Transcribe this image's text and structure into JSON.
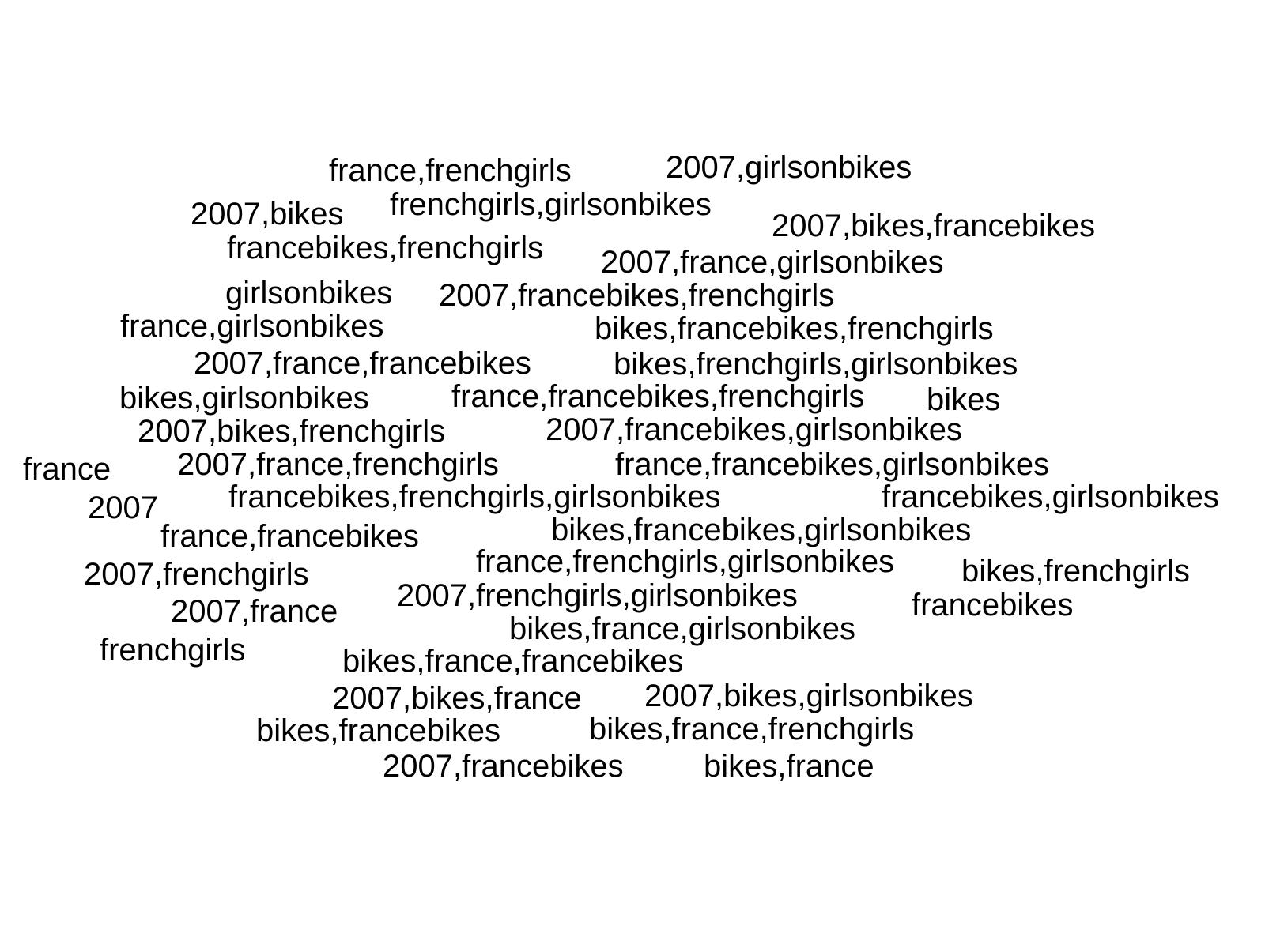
{
  "text_color": "#000000",
  "background_color": "#ffffff",
  "words": [
    "france,frenchgirls",
    "2007,girlsonbikes",
    "2007,bikes",
    "frenchgirls,girlsonbikes",
    "2007,bikes,francebikes",
    "francebikes,frenchgirls",
    "2007,france,girlsonbikes",
    "girlsonbikes",
    "2007,francebikes,frenchgirls",
    "france,girlsonbikes",
    "bikes,francebikes,frenchgirls",
    "2007,france,francebikes",
    "bikes,frenchgirls,girlsonbikes",
    "bikes,girlsonbikes",
    "france,francebikes,frenchgirls",
    "bikes",
    "2007,bikes,frenchgirls",
    "2007,francebikes,girlsonbikes",
    "france",
    "2007,france,frenchgirls",
    "france,francebikes,girlsonbikes",
    "2007",
    "francebikes,frenchgirls,girlsonbikes",
    "francebikes,girlsonbikes",
    "france,francebikes",
    "bikes,francebikes,girlsonbikes",
    "2007,frenchgirls",
    "france,frenchgirls,girlsonbikes",
    "bikes,frenchgirls",
    "2007,france",
    "2007,frenchgirls,girlsonbikes",
    "francebikes",
    "bikes,france,girlsonbikes",
    "frenchgirls",
    "bikes,france,francebikes",
    "2007,bikes,france",
    "2007,bikes,girlsonbikes",
    "bikes,francebikes",
    "bikes,france,frenchgirls",
    "2007,francebikes",
    "bikes,france"
  ]
}
